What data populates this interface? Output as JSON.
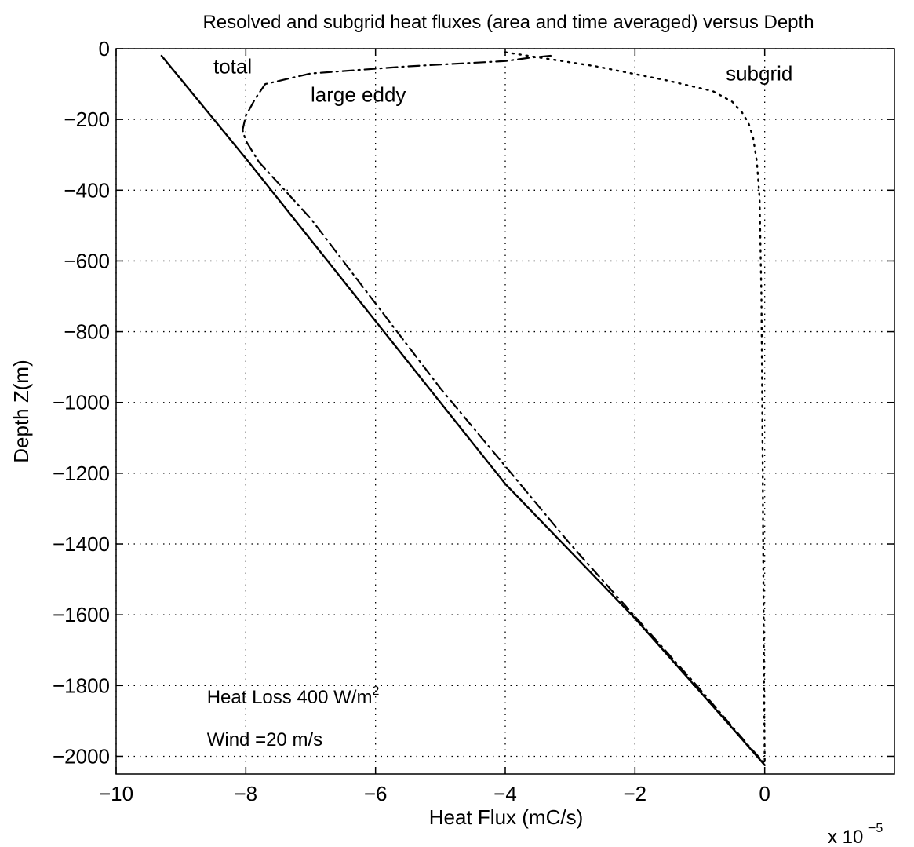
{
  "chart_data": {
    "type": "line",
    "title": "Resolved and subgrid heat fluxes (area and time averaged) versus Depth",
    "xlabel": "Heat Flux (mC/s)",
    "ylabel": "Depth Z(m)",
    "x_multiplier_label": "x 10",
    "x_multiplier_exponent": "−5",
    "xlim": [
      -10,
      2
    ],
    "ylim": [
      -2050,
      0
    ],
    "xticks": [
      -10,
      -8,
      -6,
      -4,
      -2,
      0
    ],
    "xtick_labels": [
      "−10",
      "−8",
      "−6",
      "−4",
      "−2",
      "0"
    ],
    "yticks": [
      0,
      -200,
      -400,
      -600,
      -800,
      -1000,
      -1200,
      -1400,
      -1600,
      -1800,
      -2000
    ],
    "ytick_labels": [
      "0",
      "−200",
      "−400",
      "−600",
      "−800",
      "−1000",
      "−1200",
      "−1400",
      "−1600",
      "−1800",
      "−2000"
    ],
    "grid": true,
    "series": [
      {
        "name": "total",
        "style": "solid",
        "x": [
          -9.3,
          -8.0,
          -6.0,
          -4.0,
          -2.0,
          -0.5,
          0.0
        ],
        "y": [
          -20,
          -310,
          -770,
          -1230,
          -1610,
          -1920,
          -2025
        ]
      },
      {
        "name": "large eddy",
        "style": "dashdot",
        "x": [
          -3.3,
          -3.6,
          -4.0,
          -5.5,
          -7.0,
          -7.7,
          -7.85,
          -8.0,
          -8.05,
          -8.0,
          -7.8,
          -7.0,
          -5.0,
          -3.0,
          -1.0,
          -0.2,
          0.0
        ],
        "y": [
          -20,
          -25,
          -35,
          -50,
          -70,
          -100,
          -140,
          -190,
          -230,
          -260,
          -320,
          -480,
          -960,
          -1400,
          -1810,
          -1980,
          -2020
        ]
      },
      {
        "name": "subgrid",
        "style": "dotted",
        "x": [
          -4.0,
          -2.6,
          -1.5,
          -0.8,
          -0.5,
          -0.35,
          -0.25,
          -0.18,
          -0.12,
          -0.08,
          -0.05,
          -0.03,
          -0.01,
          0.0
        ],
        "y": [
          -10,
          -50,
          -90,
          -120,
          -150,
          -180,
          -210,
          -250,
          -320,
          -420,
          -700,
          -1200,
          -1800,
          -2020
        ]
      }
    ],
    "annotations": [
      {
        "text": "total",
        "x": -8.5,
        "y": -70
      },
      {
        "text": "large eddy",
        "x": -7.0,
        "y": -150
      },
      {
        "text": "subgrid",
        "x": -0.6,
        "y": -90
      }
    ],
    "notes": [
      {
        "prefix": "Heat Loss 400 W/m",
        "sup": "2"
      },
      {
        "prefix": "Wind =20 m/s",
        "sup": ""
      }
    ]
  }
}
